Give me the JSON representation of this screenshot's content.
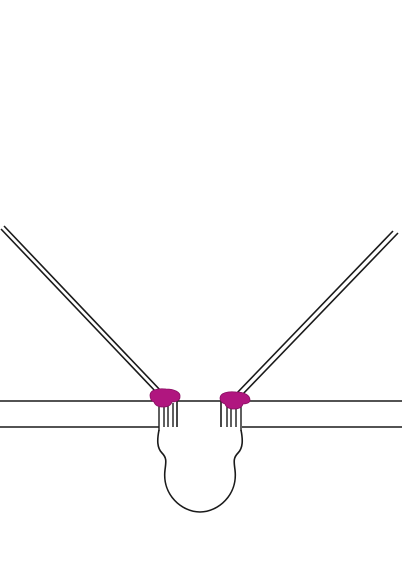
{
  "colors": {
    "background": "#ffffff",
    "line": "#1a1a1a",
    "joint_accent": "#b0167f"
  },
  "components": {
    "left_diagonal_rod": "rod",
    "right_diagonal_rod": "rod",
    "horizontal_bar": "bar",
    "left_joint": "joint-cap",
    "right_joint": "joint-cap",
    "bulb": "bulb-housing"
  }
}
